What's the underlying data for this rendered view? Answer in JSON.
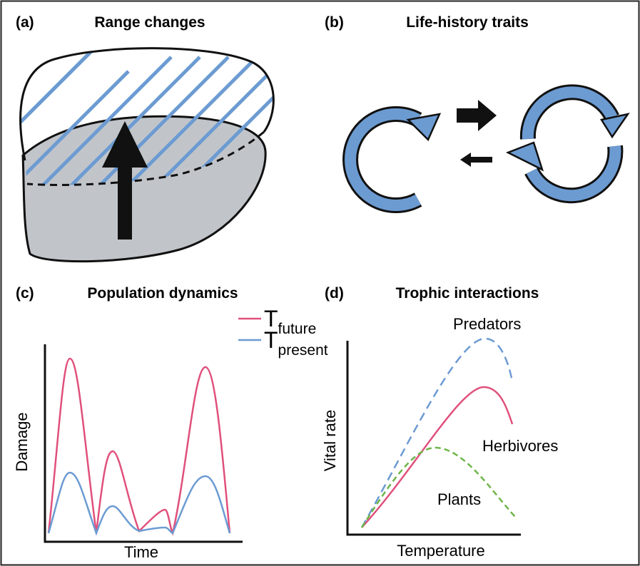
{
  "panels": [
    {
      "tag": "(a)",
      "title": "Range changes"
    },
    {
      "tag": "(b)",
      "title": "Life-history traits"
    },
    {
      "tag": "(c)",
      "title": "Population dynamics",
      "legend": [
        {
          "symbol": "T",
          "subscript": "future"
        },
        {
          "symbol": "T",
          "subscript": "present"
        }
      ],
      "y_label": "Damage",
      "x_label": "Time"
    },
    {
      "tag": "(d)",
      "title": "Trophic interactions",
      "curve_labels": [
        "Predators",
        "Herbivores",
        "Plants"
      ],
      "y_label": "Vital rate",
      "x_label": "Temperature"
    }
  ]
}
